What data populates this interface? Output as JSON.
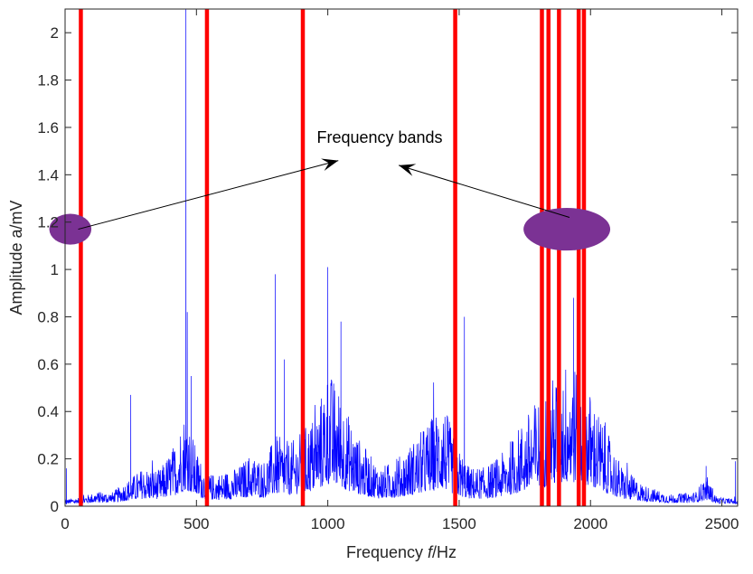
{
  "chart_data": {
    "type": "line",
    "title": "",
    "xlabel": "Frequency f/Hz",
    "xlabel_prefix": "Frequency ",
    "xlabel_var": "f",
    "xlabel_suffix": "/Hz",
    "ylabel": "Amplitude a/mV",
    "xlim": [
      0,
      2560
    ],
    "ylim": [
      0,
      2.1
    ],
    "x_ticks": [
      0,
      500,
      1000,
      1500,
      2000,
      2500
    ],
    "x_tick_labels": [
      "0",
      "500",
      "1000",
      "1500",
      "2000",
      "2500"
    ],
    "y_ticks": [
      0,
      0.2,
      0.4,
      0.6,
      0.8,
      1,
      1.2,
      1.4,
      1.6,
      1.8,
      2
    ],
    "y_tick_labels": [
      "0",
      "0.2",
      "0.4",
      "0.6",
      "0.8",
      "1",
      "1.2",
      "1.4",
      "1.6",
      "1.8",
      "2"
    ],
    "grid": false,
    "series_color": "#0000ff",
    "band_color": "#ff0000",
    "marker_color": "#7b3294",
    "band_boundaries_hz": [
      60,
      540,
      905,
      1485,
      1815,
      1840,
      1880,
      1955,
      1975
    ],
    "spectrum_envelope": {
      "x": [
        0,
        60,
        120,
        180,
        240,
        300,
        360,
        420,
        460,
        500,
        540,
        600,
        660,
        700,
        760,
        800,
        860,
        905,
        960,
        1000,
        1050,
        1100,
        1160,
        1200,
        1260,
        1320,
        1380,
        1440,
        1485,
        1540,
        1600,
        1660,
        1720,
        1780,
        1815,
        1860,
        1920,
        1960,
        2000,
        2060,
        2120,
        2200,
        2300,
        2400,
        2440,
        2480,
        2560
      ],
      "y": [
        0.02,
        0.03,
        0.05,
        0.05,
        0.1,
        0.15,
        0.14,
        0.25,
        0.4,
        0.22,
        0.12,
        0.13,
        0.15,
        0.2,
        0.18,
        0.28,
        0.25,
        0.3,
        0.38,
        0.55,
        0.45,
        0.3,
        0.2,
        0.15,
        0.18,
        0.25,
        0.33,
        0.42,
        0.25,
        0.15,
        0.15,
        0.2,
        0.3,
        0.4,
        0.45,
        0.52,
        0.6,
        0.55,
        0.45,
        0.3,
        0.15,
        0.08,
        0.04,
        0.05,
        0.12,
        0.03,
        0.02
      ]
    },
    "peaks": [
      {
        "x": 5,
        "y": 0.16
      },
      {
        "x": 250,
        "y": 0.47
      },
      {
        "x": 460,
        "y": 2.1
      },
      {
        "x": 465,
        "y": 0.82
      },
      {
        "x": 480,
        "y": 0.55
      },
      {
        "x": 800,
        "y": 0.98
      },
      {
        "x": 835,
        "y": 0.62
      },
      {
        "x": 1000,
        "y": 1.01
      },
      {
        "x": 1050,
        "y": 0.78
      },
      {
        "x": 1520,
        "y": 0.8
      },
      {
        "x": 1815,
        "y": 0.82
      },
      {
        "x": 1880,
        "y": 0.8
      },
      {
        "x": 1935,
        "y": 0.88
      },
      {
        "x": 1960,
        "y": 0.84
      },
      {
        "x": 2440,
        "y": 0.17
      },
      {
        "x": 2552,
        "y": 0.19
      }
    ],
    "annotation": {
      "text": "Frequency bands",
      "arrow_targets": [
        {
          "x": 1040,
          "y": 1.46
        },
        {
          "x": 1270,
          "y": 1.44
        }
      ],
      "arrow_sources": [
        {
          "x": 50,
          "y": 1.17
        },
        {
          "x": 1920,
          "y": 1.22
        }
      ]
    },
    "band_markers": [
      {
        "x": 20,
        "y": 1.17,
        "rx_hz": 80,
        "ry": 0.065
      },
      {
        "x": 1910,
        "y": 1.17,
        "rx_hz": 165,
        "ry": 0.09
      }
    ]
  }
}
